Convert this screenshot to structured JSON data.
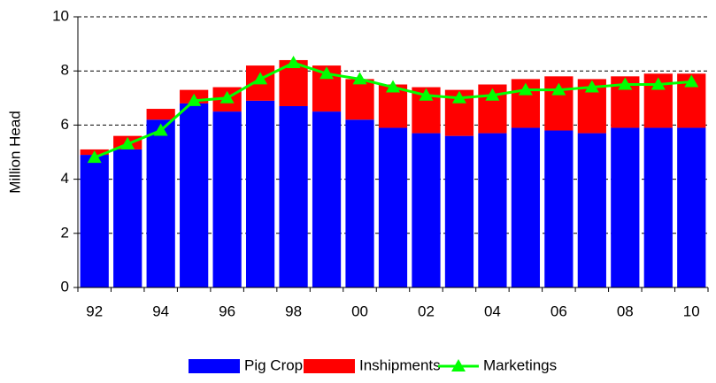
{
  "chart_data": {
    "type": "bar",
    "stacked": true,
    "categories": [
      "92",
      null,
      "94",
      null,
      "96",
      null,
      "98",
      null,
      "00",
      null,
      "02",
      null,
      "04",
      null,
      "06",
      null,
      "08",
      null,
      "10"
    ],
    "y_label": "Million Head",
    "ylim": [
      0,
      10
    ],
    "yticks": [
      0,
      2,
      4,
      6,
      8,
      10
    ],
    "grid": true,
    "series": [
      {
        "name": "Pig Crop",
        "type": "bar",
        "color": "#0000ff",
        "values": [
          4.9,
          5.1,
          6.2,
          6.8,
          6.5,
          6.9,
          6.7,
          6.5,
          6.2,
          5.9,
          5.7,
          5.6,
          5.7,
          5.9,
          5.8,
          5.7,
          5.9,
          5.9,
          5.9
        ]
      },
      {
        "name": "Inshipments",
        "type": "bar",
        "color": "#ff0000",
        "values": [
          0.2,
          0.5,
          0.4,
          0.5,
          0.9,
          1.3,
          1.7,
          1.7,
          1.5,
          1.6,
          1.7,
          1.7,
          1.8,
          1.8,
          2.0,
          2.0,
          1.9,
          2.0,
          2.0
        ]
      },
      {
        "name": "Marketings",
        "type": "line",
        "color": "#00ff00",
        "values": [
          4.8,
          5.3,
          5.8,
          6.9,
          7.0,
          7.7,
          8.3,
          7.9,
          7.7,
          7.4,
          7.1,
          7.0,
          7.1,
          7.3,
          7.3,
          7.4,
          7.5,
          7.5,
          7.6
        ]
      }
    ]
  }
}
